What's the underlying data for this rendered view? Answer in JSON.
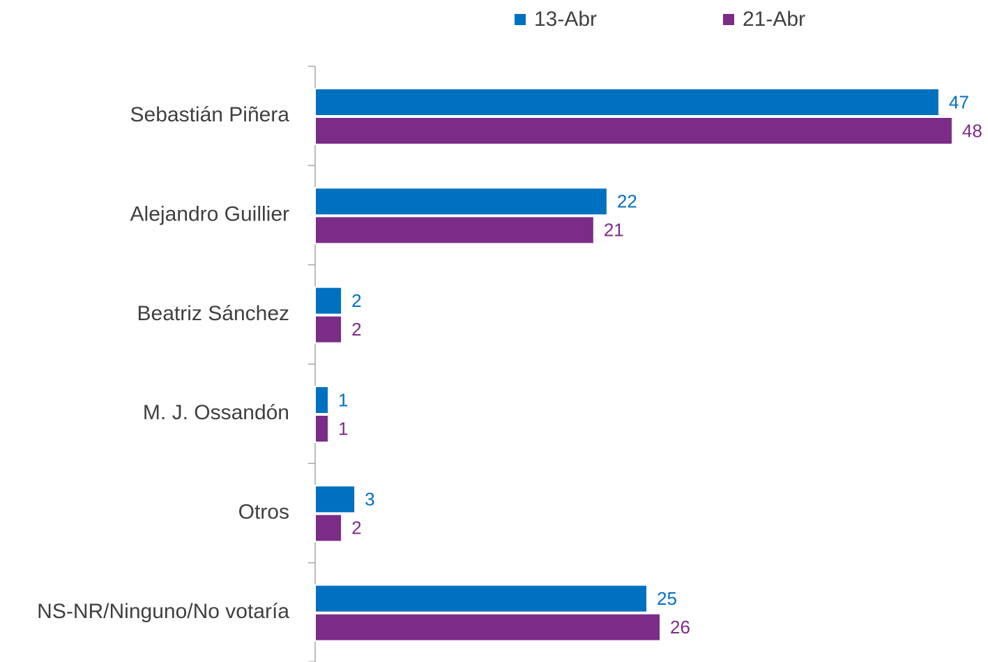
{
  "chart_data": {
    "type": "hbar",
    "categories": [
      "Sebastián Piñera",
      "Alejandro Guillier",
      "Beatriz Sánchez",
      "M. J. Ossandón",
      "Otros",
      "NS-NR/Ninguno/No votaría"
    ],
    "series": [
      {
        "name": "13-Abr",
        "color": "#0070c0",
        "values": [
          47,
          22,
          2,
          1,
          3,
          25
        ]
      },
      {
        "name": "21-Abr",
        "color": "#7b2c87",
        "values": [
          48,
          21,
          2,
          1,
          2,
          26
        ]
      }
    ],
    "xlim": [
      0,
      50
    ]
  }
}
